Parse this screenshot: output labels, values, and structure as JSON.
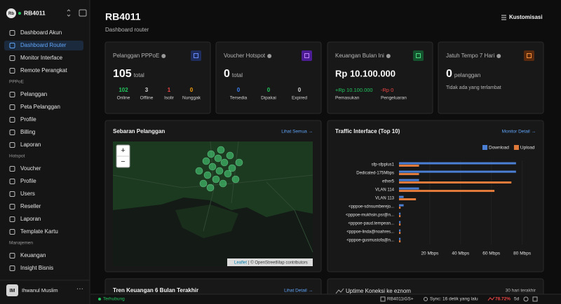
{
  "sidebar": {
    "avatar": "Rb",
    "device": "RB4011",
    "nav": [
      "Dashboard Akun",
      "Dashboard Router",
      "Monitor Interface",
      "Remote Perangkat"
    ],
    "sections": [
      {
        "title": "PPPoE",
        "items": [
          "Pelanggan",
          "Peta Pelanggan",
          "Profile",
          "Billing",
          "Laporan"
        ]
      },
      {
        "title": "Hotspot",
        "items": [
          "Voucher",
          "Profile",
          "Users",
          "Reseller",
          "Laporan",
          "Template Kartu"
        ]
      },
      {
        "title": "Manajemen",
        "items": [
          "Keuangan",
          "Insight Bisnis"
        ]
      }
    ],
    "user": {
      "initials": "IM",
      "name": "Ihwanul Muslim"
    }
  },
  "header": {
    "title": "RB4011",
    "subtitle": "Dashboard router",
    "button": "Kustomisasi"
  },
  "cards": [
    {
      "title": "Pelanggan PPPoE",
      "value": 105,
      "unit": "total",
      "stats": [
        {
          "value": 102,
          "label": "Online"
        },
        {
          "value": 3,
          "label": "Offline"
        },
        {
          "value": 1,
          "label": "Isolir"
        },
        {
          "value": 0,
          "label": "Nunggak"
        }
      ]
    },
    {
      "title": "Voucher Hotspot",
      "value": 0,
      "unit": "total",
      "stats": [
        {
          "value": 0,
          "label": "Tersedia"
        },
        {
          "value": 0,
          "label": "Dipakai"
        },
        {
          "value": 0,
          "label": "Expired"
        }
      ]
    },
    {
      "title": "Keuangan Bulan Ini",
      "value": "Rp 10.100.000",
      "stats": [
        {
          "value": "+Rp 10.100.000",
          "label": "Pemasukan"
        },
        {
          "value": "-Rp 0",
          "label": "Pengeluaran"
        }
      ]
    },
    {
      "title": "Jatuh Tempo 7 Hari",
      "value": 0,
      "unit": "pelanggan",
      "note": "Tidak ada yang terlambat"
    }
  ],
  "map": {
    "title": "Sebaran Pelanggan",
    "link": "Lihat Semua →",
    "zoom_in": "+",
    "zoom_out": "−",
    "leaflet": "Leaflet",
    "attribution": "| © OpenStreetMap contributors"
  },
  "chart_data": {
    "type": "bar",
    "orientation": "horizontal",
    "title": "Traffic Interface (Top 10)",
    "link": "Monitor Detail →",
    "categories": [
      "sfp-sfpplus1",
      "Dedicated-175Mbps",
      "ether5",
      "VLAN 114",
      "VLAN 113",
      "<pppoe-sdnsumberejo...",
      "<pppoe-mukhsin.psr@n...",
      "<pppoe-paud.tempean...",
      "<pppoe-linda@noahres...",
      "<pppoe-gusmustofa@n..."
    ],
    "series": [
      {
        "name": "Download",
        "color": "#4a7fd4",
        "values": [
          76,
          76,
          13,
          13,
          3,
          3,
          1,
          1,
          1,
          1
        ]
      },
      {
        "name": "Upload",
        "color": "#e07a3a",
        "values": [
          13,
          13,
          73,
          62,
          11,
          1,
          1,
          1,
          1,
          1
        ]
      }
    ],
    "xlim": [
      0,
      87
    ],
    "xticks": [
      {
        "value": 20,
        "label": "20 Mbps"
      },
      {
        "value": 40,
        "label": "40 Mbps"
      },
      {
        "value": 60,
        "label": "60 Mbps"
      },
      {
        "value": 80,
        "label": "80 Mbps"
      }
    ],
    "legend": "top-right",
    "grid": true
  },
  "bottom": [
    {
      "title": "Tren Keuangan 6 Bulan Terakhir",
      "link": "Lihat Detail →"
    },
    {
      "title": "Uptime Koneksi ke eznom",
      "note": "30 hari terakhir"
    }
  ],
  "status": {
    "connection": "Terhubung",
    "model": "RB4011iGS+",
    "sync": "Sync: 16 detik yang lalu",
    "cpu": "78.72%",
    "uptime": "5d"
  }
}
